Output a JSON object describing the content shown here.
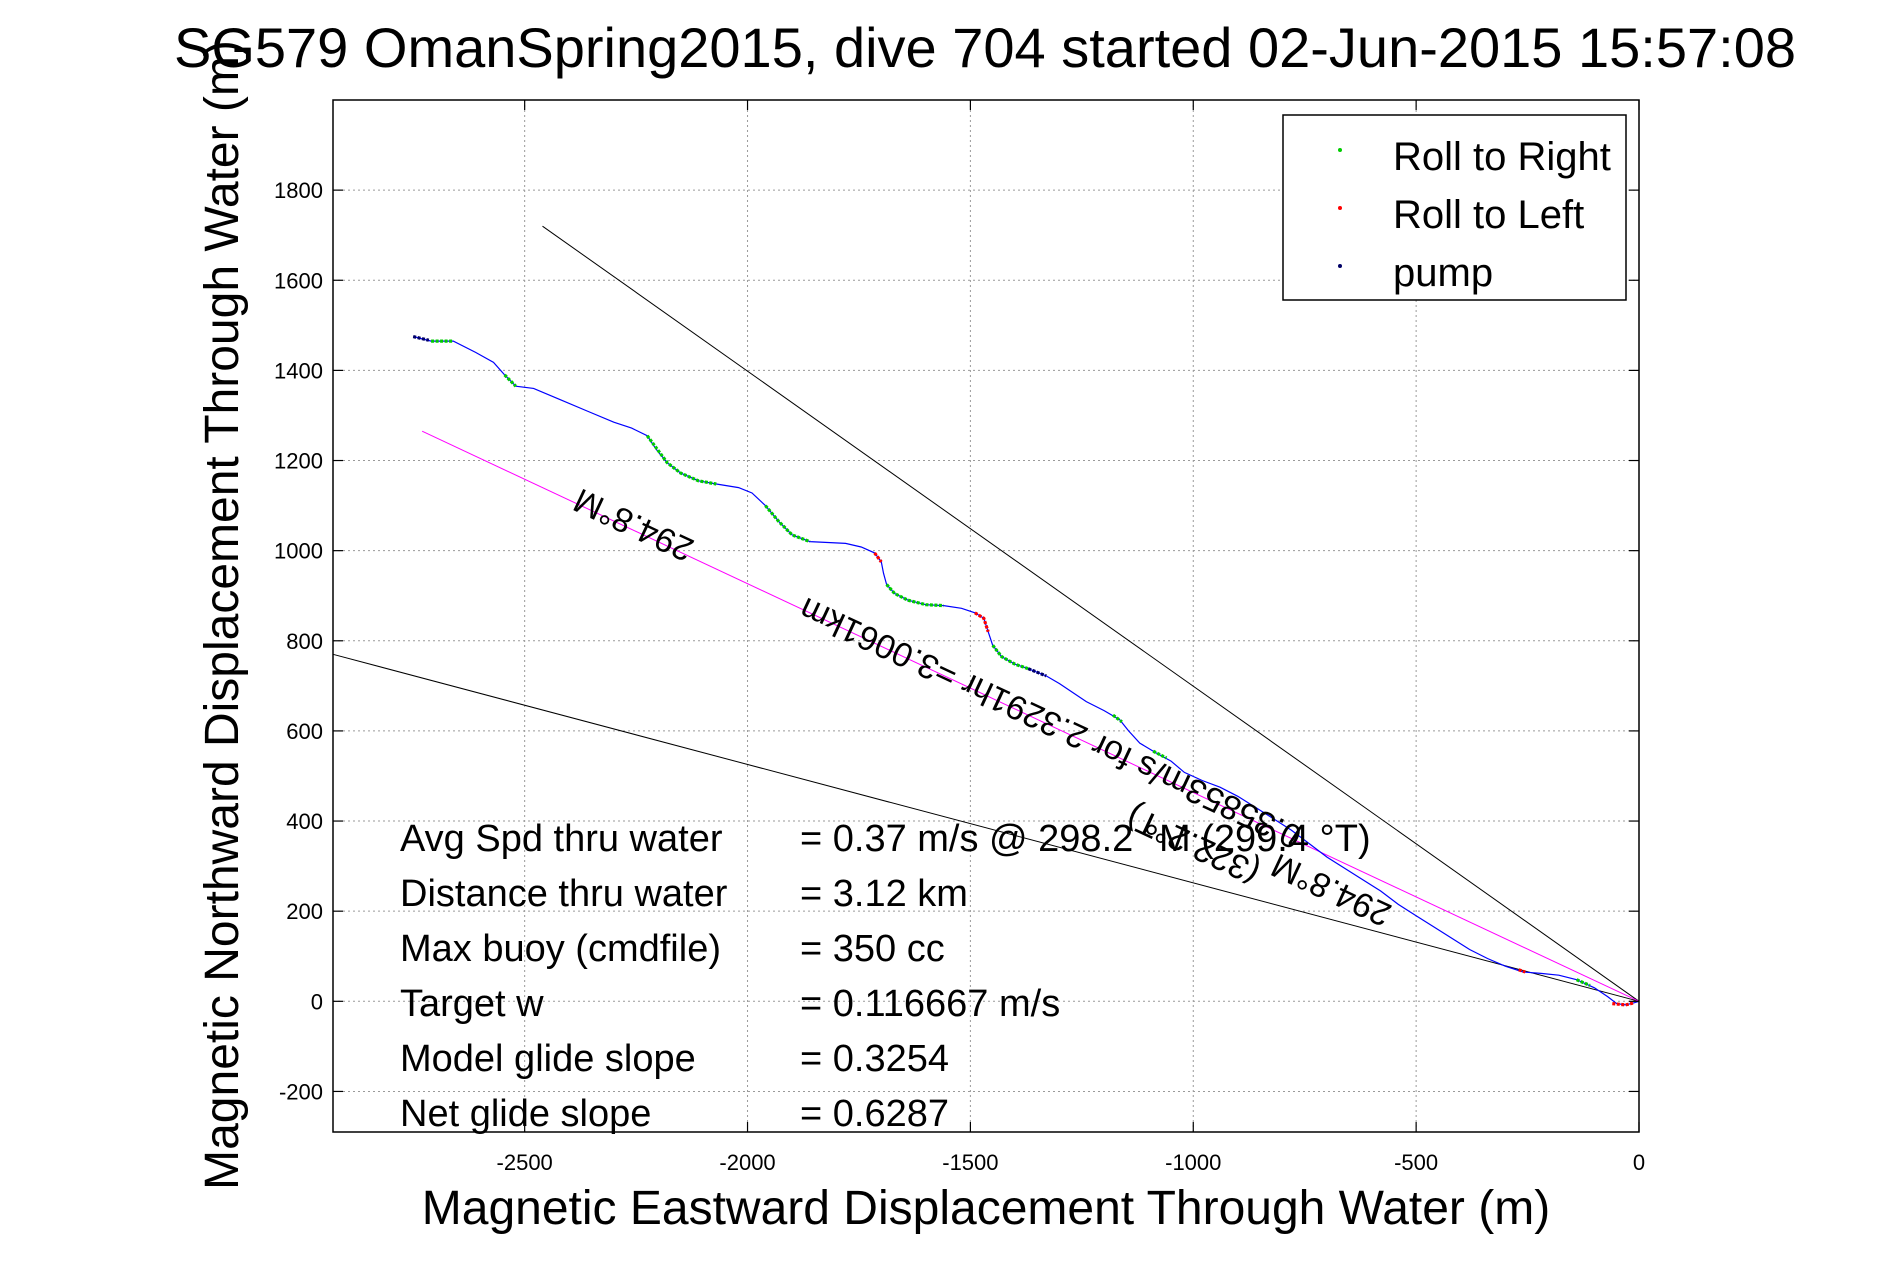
{
  "chart_data": {
    "type": "scatter",
    "title": "SG579 OmanSpring2015, dive 704 started 02-Jun-2015 15:57:08",
    "xlabel": "Magnetic Eastward Displacement Through Water (m)",
    "ylabel": "Magnetic Northward Displacement Through Water (m)",
    "xlim": [
      -2930,
      0
    ],
    "ylim": [
      -290,
      2000
    ],
    "xticks": [
      -2500,
      -2000,
      -1500,
      -1000,
      -500,
      0
    ],
    "yticks": [
      -200,
      0,
      200,
      400,
      600,
      800,
      1000,
      1200,
      1400,
      1600,
      1800
    ],
    "grid": true,
    "legend": {
      "placement": "top-right",
      "entries": [
        {
          "label": "Roll to Right",
          "color": "#00cc00"
        },
        {
          "label": "Roll to Left",
          "color": "#ff0000"
        },
        {
          "label": "pump",
          "color": "#000066"
        }
      ]
    },
    "track": {
      "name": "track",
      "color": "#0000ff",
      "points": [
        [
          -2750,
          1475
        ],
        [
          -2710,
          1465
        ],
        [
          -2660,
          1465
        ],
        [
          -2610,
          1440
        ],
        [
          -2570,
          1418
        ],
        [
          -2545,
          1390
        ],
        [
          -2520,
          1365
        ],
        [
          -2480,
          1360
        ],
        [
          -2420,
          1335
        ],
        [
          -2360,
          1310
        ],
        [
          -2300,
          1285
        ],
        [
          -2260,
          1272
        ],
        [
          -2225,
          1255
        ],
        [
          -2205,
          1225
        ],
        [
          -2180,
          1195
        ],
        [
          -2150,
          1172
        ],
        [
          -2110,
          1155
        ],
        [
          -2070,
          1148
        ],
        [
          -2020,
          1140
        ],
        [
          -1990,
          1128
        ],
        [
          -1960,
          1100
        ],
        [
          -1930,
          1065
        ],
        [
          -1900,
          1035
        ],
        [
          -1860,
          1020
        ],
        [
          -1820,
          1018
        ],
        [
          -1780,
          1016
        ],
        [
          -1745,
          1008
        ],
        [
          -1715,
          995
        ],
        [
          -1700,
          975
        ],
        [
          -1695,
          950
        ],
        [
          -1688,
          925
        ],
        [
          -1670,
          905
        ],
        [
          -1640,
          890
        ],
        [
          -1600,
          880
        ],
        [
          -1560,
          878
        ],
        [
          -1520,
          872
        ],
        [
          -1490,
          862
        ],
        [
          -1470,
          850
        ],
        [
          -1460,
          820
        ],
        [
          -1450,
          790
        ],
        [
          -1430,
          765
        ],
        [
          -1400,
          748
        ],
        [
          -1370,
          738
        ],
        [
          -1330,
          722
        ],
        [
          -1300,
          705
        ],
        [
          -1270,
          685
        ],
        [
          -1240,
          665
        ],
        [
          -1200,
          645
        ],
        [
          -1165,
          625
        ],
        [
          -1145,
          600
        ],
        [
          -1120,
          573
        ],
        [
          -1085,
          552
        ],
        [
          -1050,
          533
        ],
        [
          -1020,
          508
        ],
        [
          -980,
          490
        ],
        [
          -940,
          475
        ],
        [
          -900,
          455
        ],
        [
          -860,
          430
        ],
        [
          -820,
          405
        ],
        [
          -780,
          380
        ],
        [
          -740,
          350
        ],
        [
          -700,
          320
        ],
        [
          -660,
          295
        ],
        [
          -620,
          270
        ],
        [
          -580,
          245
        ],
        [
          -540,
          215
        ],
        [
          -500,
          190
        ],
        [
          -460,
          165
        ],
        [
          -420,
          140
        ],
        [
          -380,
          115
        ],
        [
          -340,
          95
        ],
        [
          -300,
          78
        ],
        [
          -260,
          65
        ],
        [
          -220,
          62
        ],
        [
          -180,
          58
        ],
        [
          -140,
          48
        ],
        [
          -100,
          30
        ],
        [
          -70,
          10
        ],
        [
          -50,
          -5
        ],
        [
          -30,
          -8
        ],
        [
          -10,
          -3
        ],
        [
          0,
          0
        ]
      ]
    },
    "roll_right_segments": [
      [
        [
          -2710,
          1465
        ],
        [
          -2660,
          1465
        ]
      ],
      [
        [
          -2545,
          1390
        ],
        [
          -2520,
          1365
        ]
      ],
      [
        [
          -2225,
          1255
        ],
        [
          -2180,
          1195
        ],
        [
          -2150,
          1172
        ],
        [
          -2110,
          1155
        ],
        [
          -2070,
          1148
        ]
      ],
      [
        [
          -1960,
          1100
        ],
        [
          -1930,
          1065
        ],
        [
          -1900,
          1035
        ],
        [
          -1860,
          1020
        ]
      ],
      [
        [
          -1688,
          925
        ],
        [
          -1670,
          905
        ],
        [
          -1640,
          890
        ],
        [
          -1600,
          880
        ],
        [
          -1560,
          878
        ]
      ],
      [
        [
          -1450,
          790
        ],
        [
          -1430,
          765
        ],
        [
          -1400,
          748
        ],
        [
          -1370,
          738
        ]
      ],
      [
        [
          -1180,
          635
        ],
        [
          -1160,
          620
        ]
      ],
      [
        [
          -1090,
          555
        ],
        [
          -1060,
          540
        ]
      ],
      [
        [
          -140,
          48
        ],
        [
          -110,
          35
        ]
      ]
    ],
    "roll_left_segments": [
      [
        [
          -1715,
          995
        ],
        [
          -1700,
          975
        ]
      ],
      [
        [
          -1490,
          862
        ],
        [
          -1470,
          850
        ],
        [
          -1460,
          820
        ]
      ],
      [
        [
          -270,
          70
        ],
        [
          -255,
          65
        ]
      ],
      [
        [
          -60,
          -5
        ],
        [
          -30,
          -8
        ],
        [
          -10,
          -3
        ]
      ]
    ],
    "pump_segments": [
      [
        [
          -2750,
          1475
        ],
        [
          -2715,
          1467
        ]
      ],
      [
        [
          -1370,
          738
        ],
        [
          -1330,
          722
        ]
      ]
    ],
    "lines": [
      {
        "color": "#000000",
        "points": [
          [
            -2460,
            1720
          ],
          [
            0,
            0
          ]
        ]
      },
      {
        "color": "#000000",
        "points": [
          [
            -2930,
            770
          ],
          [
            0,
            0
          ]
        ]
      },
      {
        "color": "#ff00ff",
        "points": [
          [
            -2730,
            1265
          ],
          [
            0,
            0
          ]
        ]
      }
    ],
    "annotations": [
      {
        "text": "294.8°M",
        "x": -2245,
        "y": 1080,
        "rotate": 205,
        "anchor": "middle"
      },
      {
        "text": "0.35853m/s for 2.3291hr =3.0061km",
        "x": -1310,
        "y": 640,
        "rotate": 205,
        "anchor": "middle"
      },
      {
        "text": "294.8°M",
        "x": -680,
        "y": 270,
        "rotate": 205,
        "anchor": "middle"
      },
      {
        "text": "(322.2°T)",
        "x": -990,
        "y": 370,
        "rotate": 205,
        "anchor": "middle"
      }
    ],
    "stats": [
      {
        "label": "Avg Spd thru water",
        "value": "=  0.37 m/s @ 298.2  °M (299.4  °T)"
      },
      {
        "label": "Distance thru water",
        "value": "=  3.12 km"
      },
      {
        "label": "Max buoy (cmdfile)",
        "value": "= 350 cc"
      },
      {
        "label": "Target w",
        "value": "= 0.116667 m/s"
      },
      {
        "label": "Model glide slope",
        "value": "= 0.3254"
      },
      {
        "label": "Net glide slope",
        "value": "= 0.6287"
      }
    ]
  }
}
